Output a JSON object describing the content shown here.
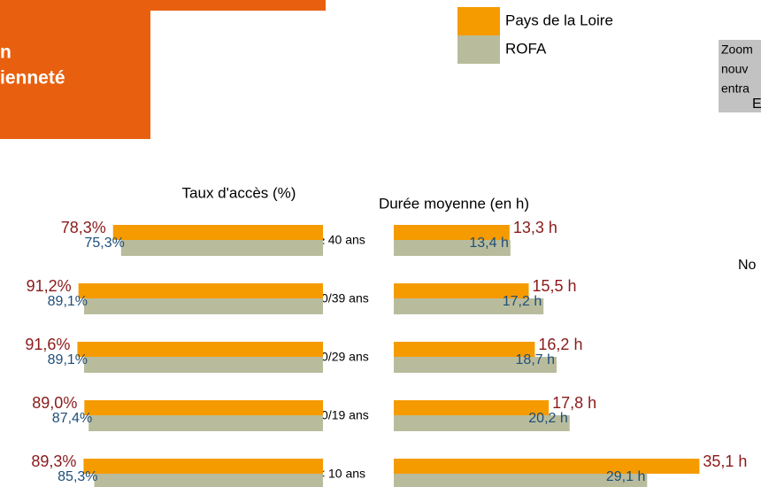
{
  "header": {
    "title_lines": [
      "n",
      "ienneté"
    ]
  },
  "sidebar": {
    "lines": [
      "Zoom",
      "nouv",
      "entra"
    ],
    "letter": "E",
    "note": "No"
  },
  "chart_data": {
    "type": "bar",
    "orientation": "horizontal",
    "categories": [
      "≥ 40 ans",
      "30/39 ans",
      "20/29 ans",
      "10/19 ans",
      "< 10 ans"
    ],
    "left": {
      "title": "Taux d'accès (%)",
      "series": [
        {
          "name": "Pays de la Loire",
          "color": "#f59b00",
          "values": [
            78.3,
            91.2,
            91.6,
            89.0,
            89.3
          ],
          "value_labels": [
            "78,3%",
            "91,2%",
            "91,6%",
            "89,0%",
            "89,3%"
          ]
        },
        {
          "name": "ROFA",
          "color": "#b9bc9c",
          "values": [
            75.3,
            89.1,
            89.1,
            87.4,
            85.3
          ],
          "value_labels": [
            "75,3%",
            "89,1%",
            "89,1%",
            "87,4%",
            "85,3%"
          ]
        }
      ]
    },
    "right": {
      "title": "Durée moyenne (en h)",
      "series": [
        {
          "color": "#f59b00",
          "values": [
            13.3,
            15.5,
            16.2,
            17.8,
            35.1
          ],
          "value_labels": [
            "13,3 h",
            "15,5 h",
            "16,2 h",
            "17,8 h",
            "35,1 h"
          ]
        },
        {
          "color": "#b9bc9c",
          "values": [
            13.4,
            17.2,
            18.7,
            20.2,
            29.1
          ],
          "value_labels": [
            "13,4 h",
            "17,2 h",
            "18,7 h",
            "20,2 h",
            "29,1 h"
          ]
        }
      ]
    }
  }
}
